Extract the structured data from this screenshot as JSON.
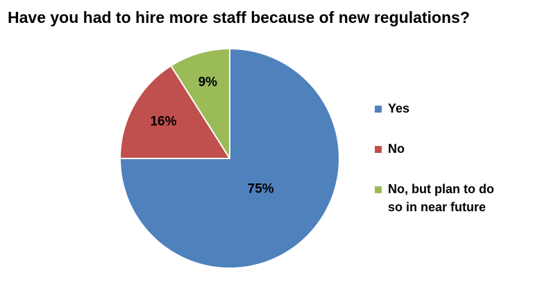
{
  "chart_data": {
    "type": "pie",
    "title": "Have you had to hire more staff because of new regulations?",
    "categories": [
      "Yes",
      "No",
      "No, but plan to do so in near future"
    ],
    "values": [
      75,
      16,
      9
    ],
    "data_labels": [
      "75%",
      "16%",
      "9%"
    ],
    "colors": [
      "#4f81bd",
      "#c0504d",
      "#9bbb59"
    ],
    "legend_position": "right",
    "legend": [
      {
        "lines": [
          "Yes"
        ]
      },
      {
        "lines": [
          "No"
        ]
      },
      {
        "lines": [
          "No, but plan to do",
          "so in near future"
        ]
      }
    ]
  }
}
